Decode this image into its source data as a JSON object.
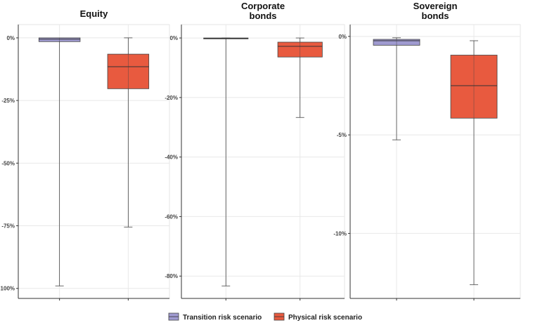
{
  "chart_data": [
    {
      "type": "box",
      "title": [
        "Equity"
      ],
      "categories": [
        "Transition risk scenario",
        "Physical risk scenario"
      ],
      "ylim": [
        -104,
        5.3
      ],
      "yticks": [
        0,
        -25,
        -50,
        -75,
        -100
      ],
      "ytick_labels": [
        "0%",
        "-25%",
        "-50%",
        "-75%",
        "-100%"
      ],
      "grid": true,
      "boxes": [
        {
          "whisker_high": 0,
          "q3": 0,
          "median": -0.5,
          "q1": -1.5,
          "whisker_low": -99
        },
        {
          "whisker_high": 0,
          "q3": -6.5,
          "median": -11.5,
          "q1": -20.3,
          "whisker_low": -75.5
        }
      ]
    },
    {
      "type": "box",
      "title": [
        "Corporate",
        "bonds"
      ],
      "categories": [
        "Transition risk scenario",
        "Physical risk scenario"
      ],
      "ylim": [
        -87.5,
        4.5
      ],
      "yticks": [
        0,
        -20,
        -40,
        -60,
        -80
      ],
      "ytick_labels": [
        "0%",
        "-20%",
        "-40%",
        "-60%",
        "-80%"
      ],
      "grid": true,
      "boxes": [
        {
          "whisker_high": 0,
          "q3": 0,
          "median": -0.1,
          "q1": -0.3,
          "whisker_low": -83.3
        },
        {
          "whisker_high": 0,
          "q3": -1.4,
          "median": -2.8,
          "q1": -6.4,
          "whisker_low": -26.7
        }
      ]
    },
    {
      "type": "box",
      "title": [
        "Sovereign",
        "bonds"
      ],
      "categories": [
        "Transition risk scenario",
        "Physical risk scenario"
      ],
      "ylim": [
        -13.3,
        0.6
      ],
      "yticks": [
        0,
        -5,
        -10
      ],
      "ytick_labels": [
        "0%",
        "-5%",
        "-10%"
      ],
      "grid": true,
      "boxes": [
        {
          "whisker_high": -0.07,
          "q3": -0.15,
          "median": -0.22,
          "q1": -0.45,
          "whisker_low": -5.25
        },
        {
          "whisker_high": -0.22,
          "q3": -0.95,
          "median": -2.5,
          "q1": -4.15,
          "whisker_low": -12.6
        }
      ]
    }
  ],
  "legend": {
    "placement": "bottom",
    "items": [
      {
        "label": "Transition risk scenario",
        "color": "#9f9ad0"
      },
      {
        "label": "Physical risk scenario",
        "color": "#e85a3f"
      }
    ]
  }
}
